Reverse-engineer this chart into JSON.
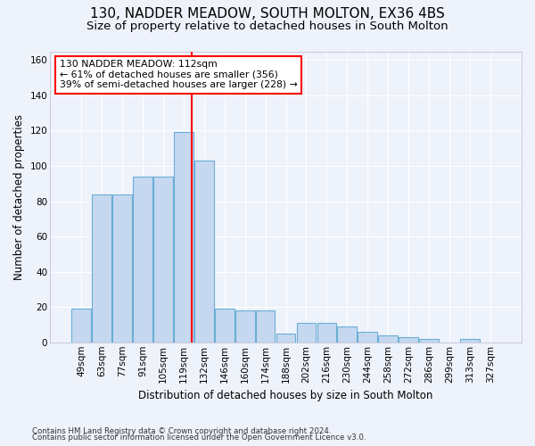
{
  "title_line1": "130, NADDER MEADOW, SOUTH MOLTON, EX36 4BS",
  "title_line2": "Size of property relative to detached houses in South Molton",
  "xlabel": "Distribution of detached houses by size in South Molton",
  "ylabel": "Number of detached properties",
  "footnote1": "Contains HM Land Registry data © Crown copyright and database right 2024.",
  "footnote2": "Contains public sector information licensed under the Open Government Licence v3.0.",
  "categories": [
    "49sqm",
    "63sqm",
    "77sqm",
    "91sqm",
    "105sqm",
    "119sqm",
    "132sqm",
    "146sqm",
    "160sqm",
    "174sqm",
    "188sqm",
    "202sqm",
    "216sqm",
    "230sqm",
    "244sqm",
    "258sqm",
    "272sqm",
    "286sqm",
    "299sqm",
    "313sqm",
    "327sqm"
  ],
  "values": [
    19,
    84,
    84,
    94,
    94,
    119,
    103,
    19,
    18,
    18,
    5,
    11,
    11,
    9,
    6,
    4,
    3,
    2,
    0,
    2,
    0
  ],
  "bar_color": "#c5d8f0",
  "bar_edge_color": "#6aaed6",
  "vline_x": 5.4,
  "vline_color": "red",
  "annotation_text": "130 NADDER MEADOW: 112sqm\n← 61% of detached houses are smaller (356)\n39% of semi-detached houses are larger (228) →",
  "box_color": "white",
  "box_edge_color": "red",
  "ylim": [
    0,
    165
  ],
  "yticks": [
    0,
    20,
    40,
    60,
    80,
    100,
    120,
    140,
    160
  ],
  "bg_color": "#eef2fb",
  "grid_color": "white",
  "title_fontsize": 11,
  "subtitle_fontsize": 9.5,
  "axis_label_fontsize": 8.5,
  "tick_fontsize": 7.5,
  "footnote_fontsize": 6.2
}
